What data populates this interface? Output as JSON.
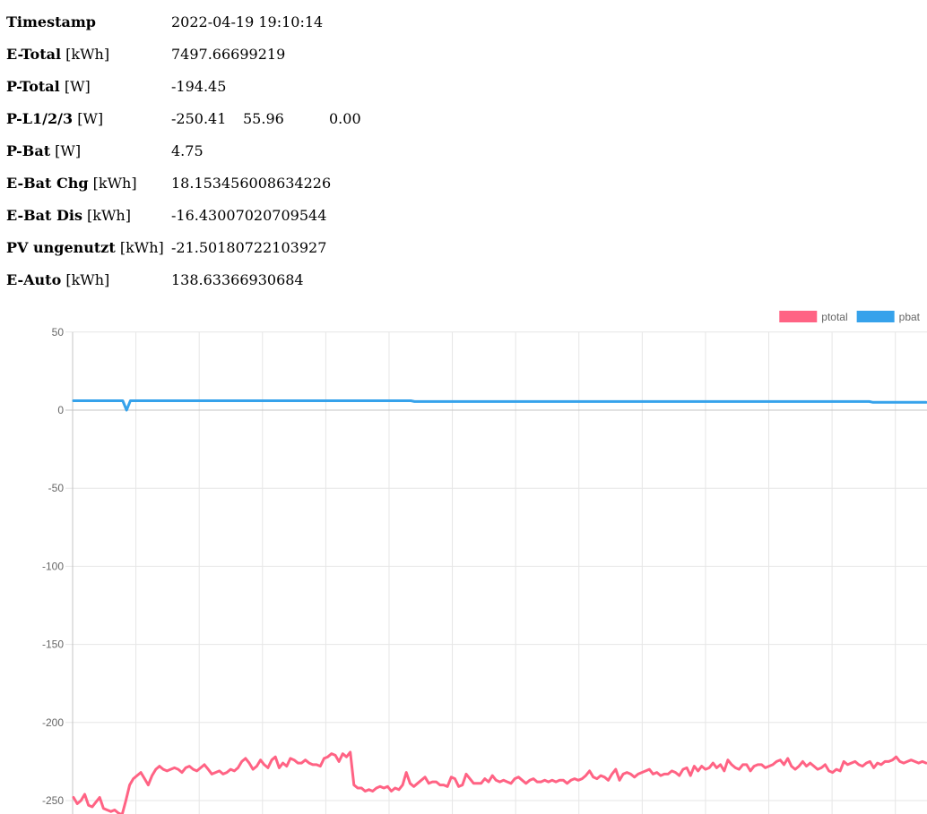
{
  "metrics": [
    {
      "label": "Timestamp",
      "unit": "",
      "value": "2022-04-19 19:10:14"
    },
    {
      "label": "E-Total",
      "unit": "[kWh]",
      "value": "7497.66699219"
    },
    {
      "label": "P-Total",
      "unit": "[W]",
      "value": "-194.45"
    },
    {
      "label": "P-L1/2/3",
      "unit": "[W]",
      "values": [
        "-250.41",
        "55.96",
        "0.00"
      ]
    },
    {
      "label": "P-Bat",
      "unit": "[W]",
      "value": "4.75"
    },
    {
      "label": "E-Bat Chg",
      "unit": "[kWh]",
      "value": "18.153456008634226"
    },
    {
      "label": "E-Bat Dis",
      "unit": "[kWh]",
      "value": "-16.43007020709544"
    },
    {
      "label": "PV ungenutzt",
      "unit": "[kWh]",
      "value": "-21.50180722103927"
    },
    {
      "label": "E-Auto",
      "unit": "[kWh]",
      "value": "138.63366930684"
    }
  ],
  "chart_data": {
    "type": "line",
    "title": "",
    "xlabel": "",
    "ylabel": "",
    "ylim": [
      -260,
      50
    ],
    "yticks": [
      50,
      0,
      -50,
      -100,
      -150,
      -200,
      -250
    ],
    "grid": true,
    "legend_position": "top-right",
    "series": [
      {
        "name": "ptotal",
        "color": "#ff6384",
        "values": [
          -248,
          -252,
          -250,
          -246,
          -253,
          -254,
          -251,
          -248,
          -255,
          -256,
          -257,
          -256,
          -258,
          -259,
          -250,
          -240,
          -236,
          -234,
          -232,
          -236,
          -240,
          -234,
          -230,
          -228,
          -230,
          -231,
          -230,
          -229,
          -230,
          -232,
          -229,
          -228,
          -230,
          -231,
          -229,
          -227,
          -230,
          -233,
          -232,
          -231,
          -233,
          -232,
          -230,
          -231,
          -229,
          -225,
          -223,
          -226,
          -230,
          -228,
          -224,
          -227,
          -229,
          -224,
          -222,
          -229,
          -226,
          -228,
          -223,
          -224,
          -226,
          -226,
          -224,
          -226,
          -227,
          -227,
          -228,
          -223,
          -222,
          -220,
          -221,
          -225,
          -220,
          -222,
          -219,
          -240,
          -242,
          -242,
          -244,
          -243,
          -244,
          -242,
          -241,
          -242,
          -241,
          -244,
          -242,
          -243,
          -240,
          -232,
          -239,
          -241,
          -239,
          -237,
          -235,
          -239,
          -238,
          -238,
          -240,
          -240,
          -241,
          -235,
          -236,
          -241,
          -240,
          -233,
          -236,
          -239,
          -239,
          -239,
          -236,
          -238,
          -234,
          -237,
          -238,
          -237,
          -238,
          -239,
          -236,
          -235,
          -237,
          -239,
          -237,
          -236,
          -238,
          -238,
          -237,
          -238,
          -237,
          -238,
          -237,
          -237,
          -239,
          -237,
          -236,
          -237,
          -236,
          -234,
          -231,
          -235,
          -236,
          -234,
          -235,
          -237,
          -233,
          -230,
          -237,
          -233,
          -232,
          -233,
          -235,
          -233,
          -232,
          -231,
          -230,
          -233,
          -232,
          -234,
          -233,
          -233,
          -231,
          -232,
          -234,
          -230,
          -229,
          -234,
          -228,
          -231,
          -228,
          -230,
          -229,
          -226,
          -229,
          -227,
          -231,
          -224,
          -227,
          -229,
          -230,
          -227,
          -227,
          -231,
          -228,
          -227,
          -227,
          -229,
          -228,
          -227,
          -225,
          -224,
          -227,
          -223,
          -228,
          -230,
          -228,
          -225,
          -228,
          -226,
          -228,
          -230,
          -229,
          -227,
          -231,
          -232,
          -230,
          -231,
          -225,
          -227,
          -226,
          -225,
          -227,
          -228,
          -226,
          -225,
          -229,
          -226,
          -227,
          -225,
          -225,
          -224,
          -222,
          -225,
          -226,
          -225,
          -224,
          -225,
          -226,
          -225,
          -226
        ]
      },
      {
        "name": "pbat",
        "color": "#36a2eb",
        "values": [
          6,
          6,
          6,
          6,
          6,
          6,
          6,
          6,
          6,
          6,
          6,
          6,
          6,
          6,
          0,
          6,
          6,
          6,
          6,
          6,
          6,
          6,
          6,
          6,
          6,
          6,
          6,
          6,
          6,
          6,
          6,
          6,
          6,
          6,
          6,
          6,
          6,
          6,
          6,
          6,
          6,
          6,
          6,
          6,
          6,
          6,
          6,
          6,
          6,
          6,
          6,
          6,
          6,
          6,
          6,
          6,
          6,
          6,
          6,
          6,
          6,
          6,
          6,
          6,
          6,
          6,
          6,
          6,
          6,
          6,
          6,
          6,
          6,
          6,
          6,
          6,
          6,
          6,
          6,
          6,
          6,
          6,
          6,
          6,
          6,
          6,
          6,
          6,
          6,
          6,
          5.5,
          5.5,
          5.5,
          5.5,
          5.5,
          5.5,
          5.5,
          5.5,
          5.5,
          5.5,
          5.5,
          5.5,
          5.5,
          5.5,
          5.5,
          5.5,
          5.5,
          5.5,
          5.5,
          5.5,
          5.5,
          5.5,
          5.5,
          5.5,
          5.5,
          5.5,
          5.5,
          5.5,
          5.5,
          5.5,
          5.5,
          5.5,
          5.5,
          5.5,
          5.5,
          5.5,
          5.5,
          5.5,
          5.5,
          5.5,
          5.5,
          5.5,
          5.5,
          5.5,
          5.5,
          5.5,
          5.5,
          5.5,
          5.5,
          5.5,
          5.5,
          5.5,
          5.5,
          5.5,
          5.5,
          5.5,
          5.5,
          5.5,
          5.5,
          5.5,
          5.5,
          5.5,
          5.5,
          5.5,
          5.5,
          5.5,
          5.5,
          5.5,
          5.5,
          5.5,
          5.5,
          5.5,
          5.5,
          5.5,
          5.5,
          5.5,
          5.5,
          5.5,
          5.5,
          5.5,
          5.5,
          5.5,
          5.5,
          5.5,
          5.5,
          5.5,
          5.5,
          5.5,
          5.5,
          5.5,
          5.5,
          5.5,
          5.5,
          5.5,
          5.5,
          5.5,
          5.5,
          5.5,
          5.5,
          5.5,
          5.5,
          5.5,
          5.5,
          5.5,
          5.5,
          5.5,
          5.5,
          5.5,
          5.5,
          5.5,
          5.5,
          5.5,
          5.5,
          5.5,
          5.5,
          5.5,
          5.5,
          5.5,
          5.5,
          5.5,
          5.5,
          5,
          5,
          5,
          5,
          5,
          5,
          5,
          5,
          5,
          5,
          5,
          5,
          5,
          5,
          5
        ]
      }
    ]
  }
}
